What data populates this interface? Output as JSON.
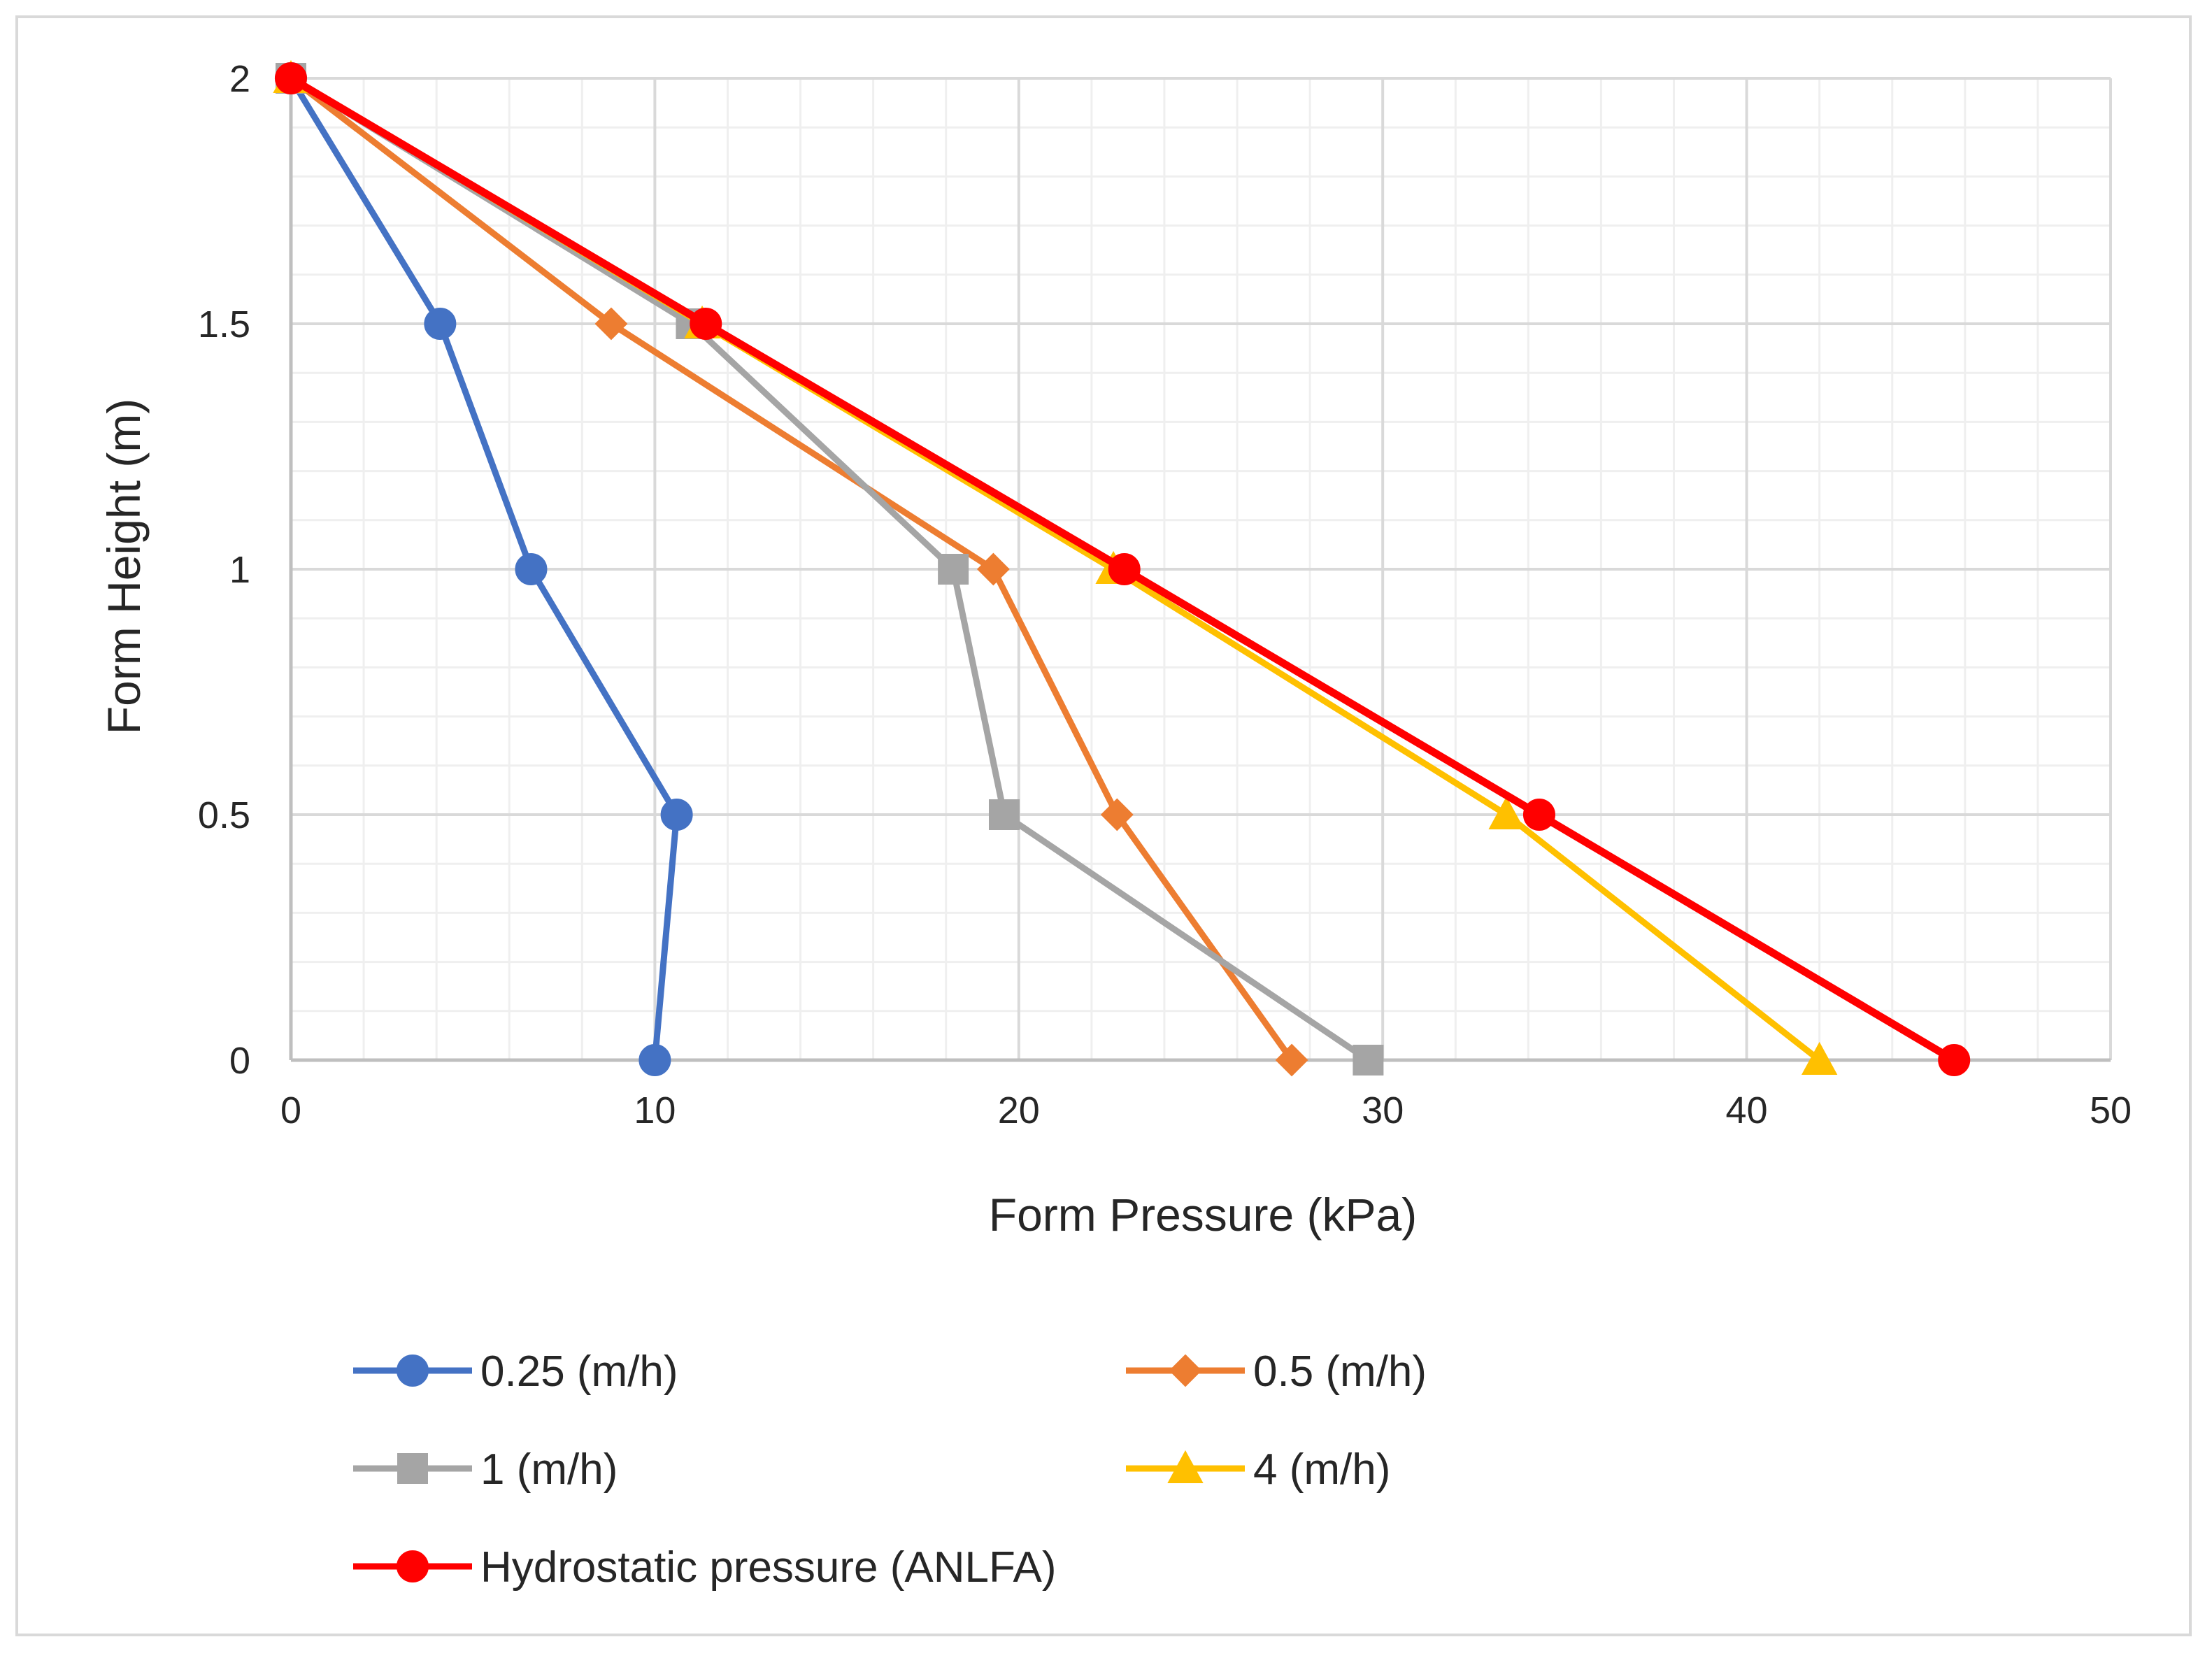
{
  "chart_data": {
    "type": "line",
    "title": "",
    "xlabel": "Form Pressure (kPa)",
    "ylabel": "Form Height (m)",
    "xlim": [
      0,
      50
    ],
    "ylim": [
      0,
      2
    ],
    "x_major_ticks": [
      0,
      10,
      20,
      30,
      40,
      50
    ],
    "x_tick_labels": [
      "0",
      "10",
      "20",
      "30",
      "40",
      "50"
    ],
    "y_major_ticks": [
      0,
      0.5,
      1,
      1.5,
      2
    ],
    "y_tick_labels": [
      "0",
      "0.5",
      "1",
      "1.5",
      "2"
    ],
    "x_minor_step": 2,
    "y_minor_step": 0.1,
    "grid": true,
    "legend_position": "bottom",
    "series": [
      {
        "name": "0.25 (m/h)",
        "color": "#4472c4",
        "marker": "circle",
        "points": [
          [
            0,
            2
          ],
          [
            4.1,
            1.5
          ],
          [
            6.6,
            1.0
          ],
          [
            10.6,
            0.5
          ],
          [
            10.0,
            0
          ]
        ]
      },
      {
        "name": "0.5 (m/h)",
        "color": "#ed7d31",
        "marker": "diamond",
        "points": [
          [
            0,
            2
          ],
          [
            8.8,
            1.5
          ],
          [
            19.3,
            1.0
          ],
          [
            22.7,
            0.5
          ],
          [
            27.5,
            0
          ]
        ]
      },
      {
        "name": "1 (m/h)",
        "color": "#a5a5a5",
        "marker": "square",
        "points": [
          [
            0,
            2
          ],
          [
            11.0,
            1.5
          ],
          [
            18.2,
            1.0
          ],
          [
            19.6,
            0.5
          ],
          [
            29.6,
            0
          ]
        ]
      },
      {
        "name": "4 (m/h)",
        "color": "#ffc000",
        "marker": "triangle",
        "points": [
          [
            0,
            2
          ],
          [
            11.3,
            1.5
          ],
          [
            22.6,
            1.0
          ],
          [
            33.4,
            0.5
          ],
          [
            42.0,
            0
          ]
        ]
      },
      {
        "name": "Hydrostatic pressure (ANLFA)",
        "color": "#ff0000",
        "marker": "circle",
        "points": [
          [
            0,
            2
          ],
          [
            11.4,
            1.5
          ],
          [
            22.9,
            1.0
          ],
          [
            34.3,
            0.5
          ],
          [
            45.7,
            0
          ]
        ]
      }
    ]
  }
}
